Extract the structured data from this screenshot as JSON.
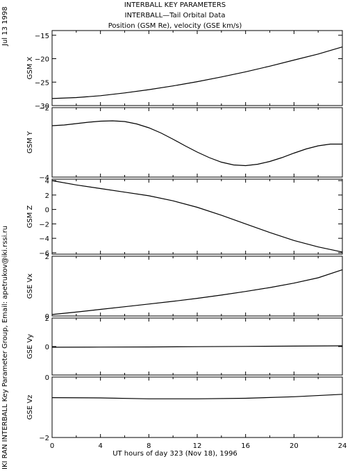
{
  "title": {
    "line1": "INTERBALL KEY PARAMETERS",
    "line2": "INTERBALL—Tail Orbital Data",
    "line3": "Position (GSM Re), velocity (GSE km/s)"
  },
  "date_label": "Jul 13 1998",
  "credit_label": "IKI RAN INTERBALL Key Parameter Group, Email: apetrukov@iki.rssi.ru",
  "x_axis_label": "UT hours of day 323 (Nov 18), 1996",
  "chart_data": {
    "type": "line",
    "x_range": [
      0,
      24
    ],
    "x_ticks": [
      0,
      4,
      8,
      12,
      16,
      20,
      24
    ],
    "x_tick_labels": [
      "0",
      "4",
      "8",
      "12",
      "16",
      "20",
      "24"
    ],
    "panels": [
      {
        "ylabel": "GSM X",
        "ylim": [
          -30,
          -14
        ],
        "y_ticks": [
          -15,
          -20,
          -25,
          -30
        ],
        "y_tick_labels": [
          "−15",
          "−20",
          "−25",
          "−30"
        ],
        "x": [
          0,
          2,
          4,
          6,
          8,
          10,
          12,
          14,
          16,
          18,
          20,
          22,
          24
        ],
        "y": [
          -28.5,
          -28.3,
          -27.9,
          -27.3,
          -26.6,
          -25.8,
          -24.9,
          -23.9,
          -22.8,
          -21.6,
          -20.3,
          -19.0,
          -17.5
        ]
      },
      {
        "ylabel": "GSM Y",
        "ylim": [
          -4,
          -2
        ],
        "y_ticks": [
          -2,
          -4
        ],
        "y_tick_labels": [
          "−2",
          "−4"
        ],
        "x": [
          0,
          1,
          2,
          3,
          4,
          5,
          6,
          7,
          8,
          9,
          10,
          11,
          12,
          13,
          14,
          15,
          16,
          17,
          18,
          19,
          20,
          21,
          22,
          23,
          24
        ],
        "y": [
          -2.52,
          -2.5,
          -2.46,
          -2.42,
          -2.39,
          -2.38,
          -2.4,
          -2.47,
          -2.58,
          -2.73,
          -2.91,
          -3.1,
          -3.28,
          -3.44,
          -3.57,
          -3.65,
          -3.67,
          -3.63,
          -3.55,
          -3.44,
          -3.31,
          -3.19,
          -3.1,
          -3.05,
          -3.05
        ]
      },
      {
        "ylabel": "GSM Z",
        "ylim": [
          -6.2,
          4.2
        ],
        "y_ticks": [
          4,
          2,
          0,
          -2,
          -4,
          -6
        ],
        "y_tick_labels": [
          "4",
          "2",
          "0",
          "−2",
          "−4",
          "−6"
        ],
        "x": [
          0,
          2,
          4,
          6,
          8,
          10,
          12,
          14,
          16,
          18,
          20,
          22,
          24
        ],
        "y": [
          4.0,
          3.4,
          2.9,
          2.4,
          1.9,
          1.2,
          0.3,
          -0.8,
          -2.0,
          -3.2,
          -4.3,
          -5.2,
          -5.9
        ]
      },
      {
        "ylabel": "GSE Vx",
        "ylim": [
          0,
          2
        ],
        "y_ticks": [
          2,
          0
        ],
        "y_tick_labels": [
          "2",
          "0"
        ],
        "x": [
          0,
          2,
          4,
          6,
          8,
          10,
          12,
          14,
          16,
          18,
          20,
          22,
          24
        ],
        "y": [
          0.05,
          0.13,
          0.22,
          0.31,
          0.4,
          0.49,
          0.59,
          0.7,
          0.82,
          0.95,
          1.1,
          1.28,
          1.55
        ]
      },
      {
        "ylabel": "GSE Vy",
        "ylim": [
          -2,
          2
        ],
        "y_ticks": [
          2,
          0
        ],
        "y_tick_labels": [
          "2",
          "0"
        ],
        "x": [
          0,
          4,
          8,
          12,
          16,
          20,
          24
        ],
        "y": [
          -0.05,
          -0.04,
          -0.03,
          -0.01,
          0.01,
          0.03,
          0.05
        ]
      },
      {
        "ylabel": "GSE Vz",
        "ylim": [
          -2,
          0
        ],
        "y_ticks": [
          0,
          -2
        ],
        "y_tick_labels": [
          "0",
          "−2"
        ],
        "x": [
          0,
          4,
          8,
          12,
          16,
          20,
          24
        ],
        "y": [
          -0.68,
          -0.69,
          -0.72,
          -0.72,
          -0.7,
          -0.65,
          -0.57
        ]
      }
    ]
  }
}
